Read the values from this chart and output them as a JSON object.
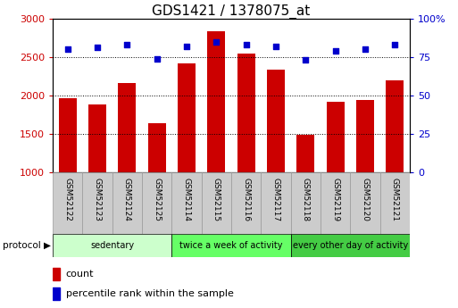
{
  "title": "GDS1421 / 1378075_at",
  "samples": [
    "GSM52122",
    "GSM52123",
    "GSM52124",
    "GSM52125",
    "GSM52114",
    "GSM52115",
    "GSM52116",
    "GSM52117",
    "GSM52118",
    "GSM52119",
    "GSM52120",
    "GSM52121"
  ],
  "counts": [
    1970,
    1880,
    2160,
    1640,
    2420,
    2840,
    2540,
    2340,
    1490,
    1920,
    1940,
    2200
  ],
  "percentiles": [
    80,
    81,
    83,
    74,
    82,
    85,
    83,
    82,
    73,
    79,
    80,
    83
  ],
  "ylim_left": [
    1000,
    3000
  ],
  "ylim_right": [
    0,
    100
  ],
  "yticks_left": [
    1000,
    1500,
    2000,
    2500,
    3000
  ],
  "yticks_right": [
    0,
    25,
    50,
    75,
    100
  ],
  "bar_color": "#cc0000",
  "dot_color": "#0000cc",
  "bar_width": 0.6,
  "groups": [
    {
      "label": "sedentary",
      "indices": [
        0,
        1,
        2,
        3
      ],
      "color": "#ccffcc"
    },
    {
      "label": "twice a week of activity",
      "indices": [
        4,
        5,
        6,
        7
      ],
      "color": "#66ff66"
    },
    {
      "label": "every other day of activity",
      "indices": [
        8,
        9,
        10,
        11
      ],
      "color": "#44cc44"
    }
  ],
  "protocol_label": "protocol ▶",
  "legend_count": "count",
  "legend_percentile": "percentile rank within the sample",
  "bar_color_legend": "#cc0000",
  "dot_color_legend": "#0000cc",
  "tick_label_color_left": "#cc0000",
  "tick_label_color_right": "#0000cc",
  "label_bg": "#cccccc",
  "title_fontsize": 11
}
